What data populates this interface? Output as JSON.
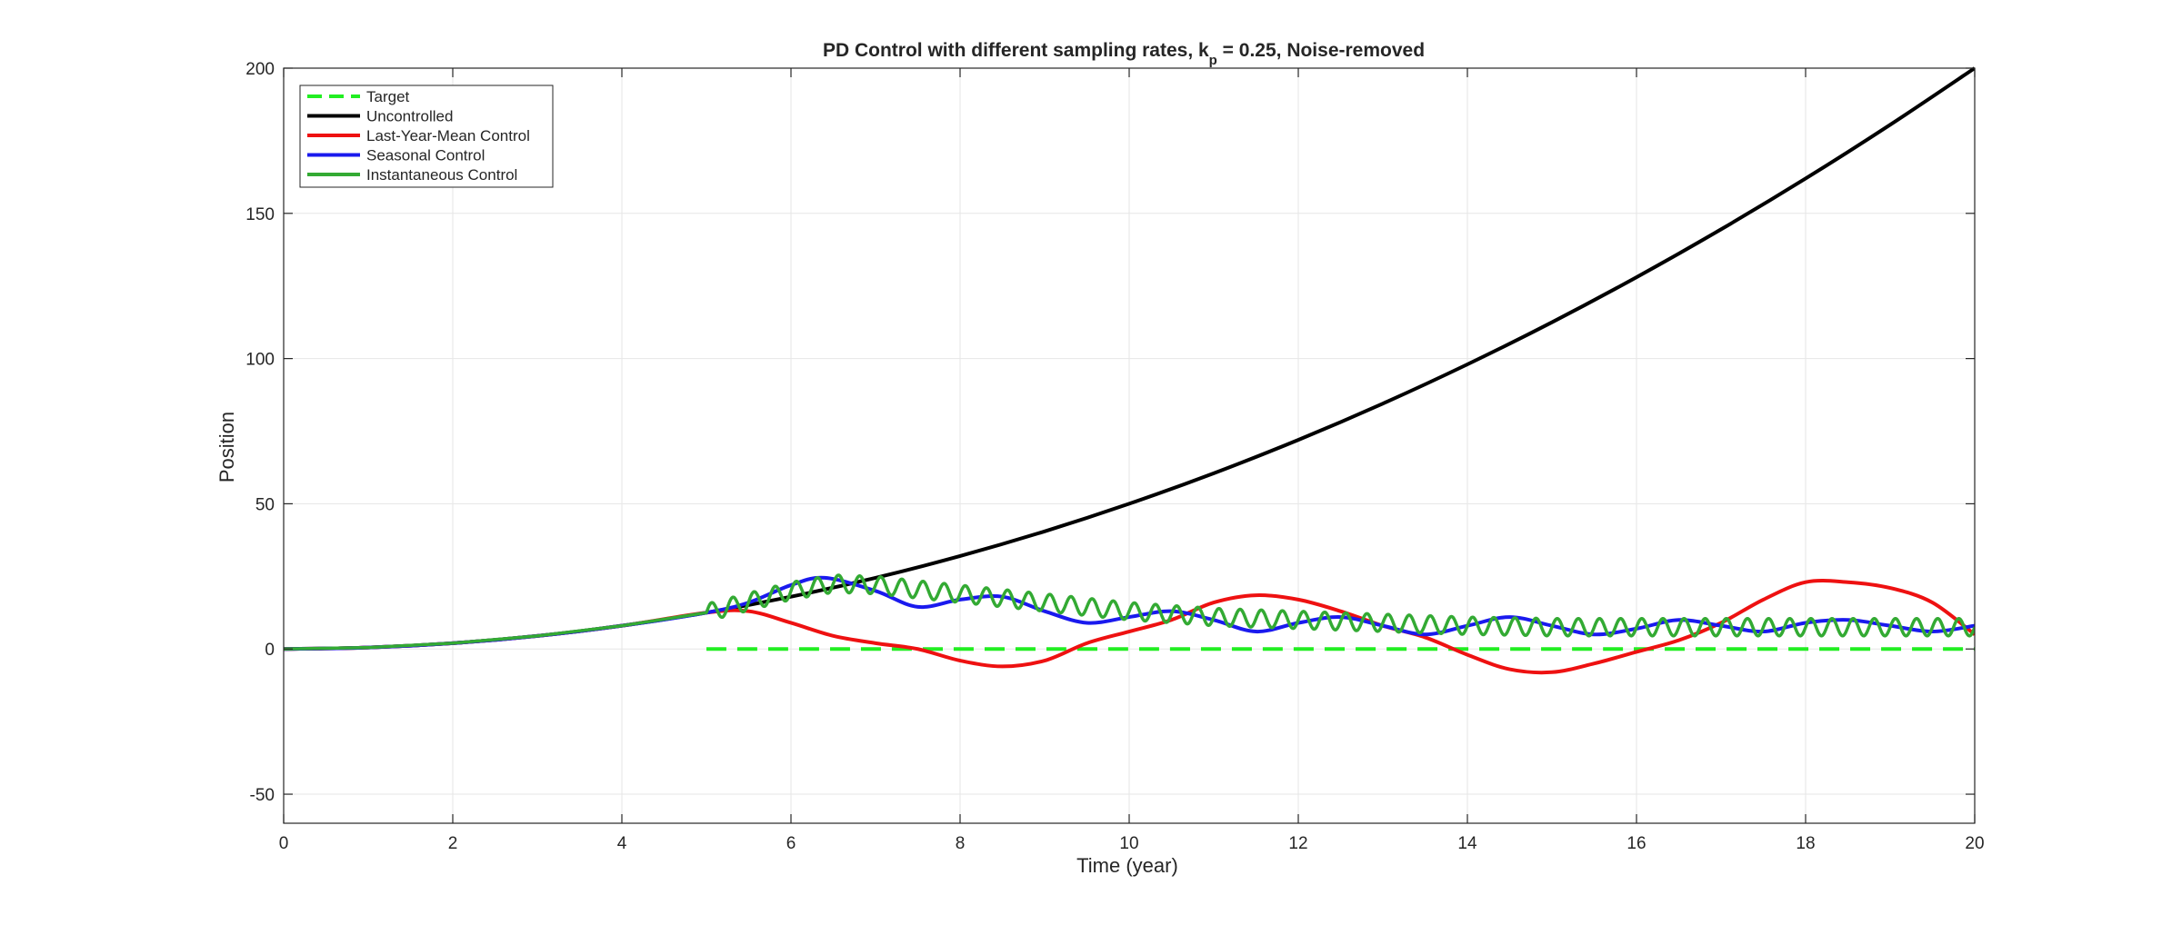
{
  "chart_data": {
    "type": "line",
    "title": {
      "main": "PD  Control  with  different  sampling  rates,  k",
      "subscript": "p",
      "rest": "  =  0.25,  Noise-removed"
    },
    "xlabel": "Time (year)",
    "ylabel": "Position",
    "xlim": [
      0,
      20
    ],
    "ylim": [
      -60,
      200
    ],
    "xticks": [
      0,
      2,
      4,
      6,
      8,
      10,
      12,
      14,
      16,
      18,
      20
    ],
    "yticks": [
      -50,
      0,
      50,
      100,
      150,
      200
    ],
    "xtick_labels": [
      "0",
      "2",
      "4",
      "6",
      "8",
      "10",
      "12",
      "14",
      "16",
      "18",
      "20"
    ],
    "ytick_labels": [
      "-50",
      "0",
      "50",
      "100",
      "150",
      "200"
    ],
    "grid": true,
    "legend_position": "top-left",
    "series": [
      {
        "name": "Target",
        "color": "#22ee22",
        "style": "dashed",
        "x": [
          5,
          20
        ],
        "y": [
          0,
          0
        ]
      },
      {
        "name": "Uncontrolled",
        "color": "#000000",
        "style": "solid",
        "x": [
          0,
          1,
          2,
          3,
          4,
          5,
          6,
          7,
          8,
          9,
          10,
          11,
          12,
          13,
          14,
          15,
          16,
          17,
          18,
          19,
          20
        ],
        "y": [
          0,
          0.5,
          2,
          4.5,
          8,
          12.5,
          18,
          24.5,
          32,
          40.5,
          50,
          60.5,
          72,
          84.5,
          98,
          112.5,
          128,
          144.5,
          162,
          180.5,
          200
        ]
      },
      {
        "name": "Last-Year-Mean Control",
        "color": "#ee1111",
        "style": "solid",
        "x": [
          0,
          1,
          2,
          3,
          4,
          5,
          5.5,
          6,
          6.5,
          7,
          7.5,
          8,
          8.5,
          9,
          9.5,
          10,
          10.5,
          11,
          11.5,
          12,
          12.5,
          13,
          13.5,
          14,
          14.5,
          15,
          15.5,
          16,
          16.5,
          17,
          17.5,
          18,
          18.5,
          19,
          19.5,
          20
        ],
        "y": [
          0,
          0.5,
          2,
          4.5,
          8,
          12.5,
          13,
          9,
          4.5,
          2,
          0,
          -4,
          -6,
          -4,
          2,
          6,
          10,
          16,
          18.5,
          17,
          13,
          8,
          4,
          -2,
          -7,
          -8,
          -5,
          -1,
          3,
          9,
          17,
          23,
          23,
          21,
          16,
          5
        ]
      },
      {
        "name": "Seasonal Control",
        "color": "#1a1aee",
        "style": "solid",
        "x": [
          0,
          1,
          2,
          3,
          4,
          5,
          5.5,
          6,
          6.4,
          7,
          7.5,
          8,
          8.5,
          9,
          9.5,
          10,
          10.5,
          11,
          11.5,
          12,
          12.5,
          13,
          13.5,
          14,
          14.5,
          15,
          15.5,
          16,
          16.5,
          17,
          17.5,
          18,
          18.5,
          19,
          19.5,
          20
        ],
        "y": [
          0,
          0.5,
          2,
          4.5,
          8,
          12.5,
          16,
          22,
          24.5,
          20,
          14.5,
          17,
          18,
          13,
          9,
          11,
          13,
          10,
          6,
          9,
          11,
          8,
          5,
          8,
          11,
          8,
          5,
          7,
          10,
          8,
          6,
          9,
          10,
          8,
          6,
          8
        ]
      },
      {
        "name": "Instantaneous Control",
        "color": "#33aa33",
        "style": "oscillating",
        "x": [
          0,
          1,
          2,
          3,
          4,
          5,
          6,
          6.5,
          7,
          8,
          9,
          10,
          11,
          12,
          13,
          14,
          15,
          16,
          17,
          18,
          19,
          20
        ],
        "y": [
          0,
          0.5,
          2,
          4.5,
          8,
          12.5,
          20,
          22.5,
          22,
          19,
          16,
          13,
          11,
          10,
          9,
          8,
          7.5,
          7.5,
          7.5,
          7.5,
          7.5,
          7.5
        ],
        "oscillation_start_x": 5,
        "oscillation_period": 0.25,
        "oscillation_amplitude": 3
      }
    ]
  }
}
